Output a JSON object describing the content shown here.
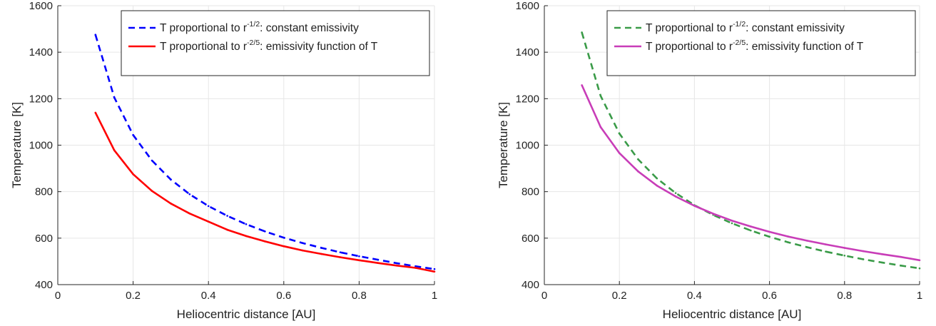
{
  "chart_data": [
    {
      "type": "line",
      "title": "",
      "xlabel": "Heliocentric distance [AU]",
      "ylabel": "Temperature [K]",
      "xlim": [
        0,
        1
      ],
      "ylim": [
        400,
        1600
      ],
      "x_ticks": [
        "0",
        "0.2",
        "0.4",
        "0.6",
        "0.8",
        "1"
      ],
      "y_ticks": [
        "400",
        "600",
        "800",
        "1000",
        "1200",
        "1400",
        "1600"
      ],
      "grid": true,
      "legend_position": "top-right",
      "x": [
        0.1,
        0.15,
        0.2,
        0.25,
        0.3,
        0.35,
        0.4,
        0.45,
        0.5,
        0.55,
        0.6,
        0.65,
        0.7,
        0.75,
        0.8,
        0.85,
        0.9,
        0.95,
        1.0
      ],
      "series": [
        {
          "legend_prefix": "T proportional to r",
          "legend_exponent": "-1/2",
          "legend_suffix": ": constant emissivity",
          "color": "#0000ff",
          "style": "dashed",
          "values": [
            1475,
            1205,
            1044,
            934,
            852,
            789,
            738,
            696,
            660,
            629,
            602,
            579,
            558,
            539,
            522,
            507,
            492,
            479,
            467
          ]
        },
        {
          "legend_prefix": "T proportional to r",
          "legend_exponent": "-2/5",
          "legend_suffix": ": emissivity function of T",
          "color": "#ff0000",
          "style": "solid",
          "values": [
            1140,
            978,
            875,
            803,
            749,
            706,
            671,
            636,
            609,
            586,
            565,
            547,
            532,
            518,
            505,
            493,
            482,
            472,
            456
          ]
        }
      ]
    },
    {
      "type": "line",
      "title": "",
      "xlabel": "Heliocentric distance [AU]",
      "ylabel": "Temperature [K]",
      "xlim": [
        0,
        1
      ],
      "ylim": [
        400,
        1600
      ],
      "x_ticks": [
        "0",
        "0.2",
        "0.4",
        "0.6",
        "0.8",
        "1"
      ],
      "y_ticks": [
        "400",
        "600",
        "800",
        "1000",
        "1200",
        "1400",
        "1600"
      ],
      "grid": true,
      "legend_position": "top-right",
      "x": [
        0.1,
        0.15,
        0.2,
        0.25,
        0.3,
        0.35,
        0.4,
        0.45,
        0.5,
        0.55,
        0.6,
        0.65,
        0.7,
        0.75,
        0.8,
        0.85,
        0.9,
        0.95,
        1.0
      ],
      "series": [
        {
          "legend_prefix": "T proportional to r",
          "legend_exponent": "-1/2",
          "legend_suffix": ": constant emissivity",
          "color": "#3a9b48",
          "style": "dashed",
          "values": [
            1485,
            1212,
            1050,
            939,
            857,
            794,
            742,
            700,
            664,
            633,
            606,
            582,
            561,
            542,
            525,
            509,
            495,
            482,
            470
          ]
        },
        {
          "legend_prefix": "T proportional to r",
          "legend_exponent": "-2/5",
          "legend_suffix": ": emissivity function of T",
          "color": "#c83db8",
          "style": "solid",
          "values": [
            1258,
            1078,
            966,
            887,
            826,
            779,
            739,
            705,
            675,
            650,
            627,
            607,
            589,
            573,
            558,
            544,
            531,
            519,
            505
          ]
        }
      ]
    }
  ]
}
